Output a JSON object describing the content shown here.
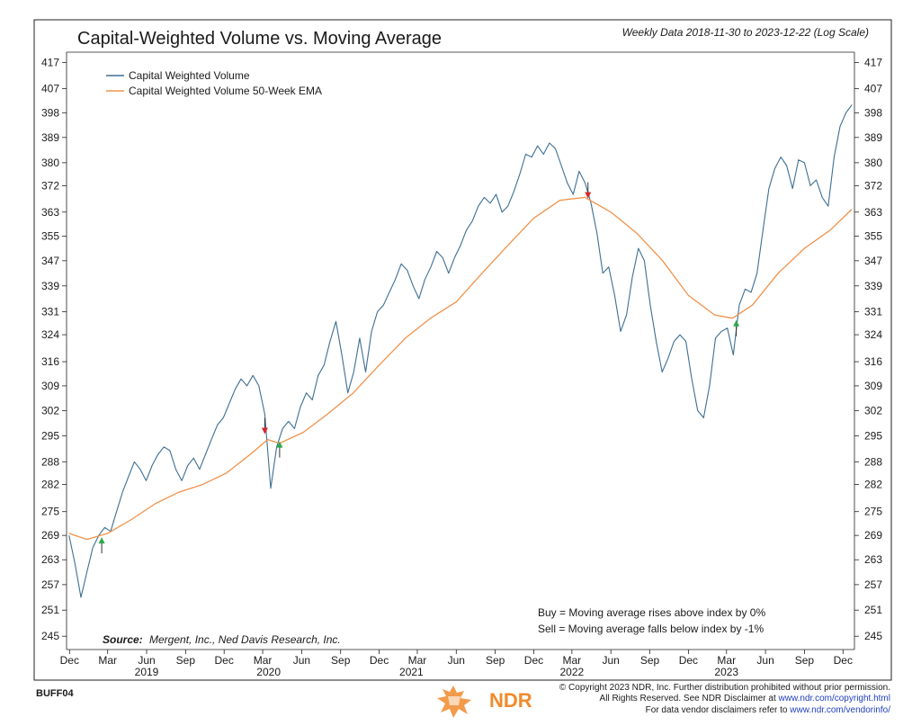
{
  "header": {
    "title": "Capital-Weighted Volume vs. Moving Average",
    "subtitle": "Weekly Data 2018-11-30 to 2023-12-22 (Log Scale)"
  },
  "legend": {
    "items": [
      {
        "label": "Capital Weighted Volume",
        "color": "#3d6f93"
      },
      {
        "label": "Capital Weighted Volume 50-Week EMA",
        "color": "#f0924a"
      }
    ]
  },
  "rules": {
    "buy": "Buy = Moving average rises above index by 0%",
    "sell": "Sell = Moving average falls below index by -1%"
  },
  "source": {
    "label": "Source:",
    "text": "Mergent, Inc., Ned Davis Research, Inc."
  },
  "footer": {
    "code": "BUFF04",
    "logo": "NDR",
    "copyright": "© Copyright 2023 NDR, Inc. Further distribution prohibited without prior permission.",
    "rights_prefix": "All Rights Reserved. See NDR Disclaimer at ",
    "rights_link": "www.ndr.com/copyright.html",
    "vendor_prefix": "For data vendor disclaimers refer to ",
    "vendor_link": "www.ndr.com/vendorinfo/"
  },
  "chart_data": {
    "type": "line",
    "title": "Capital-Weighted Volume vs. Moving Average",
    "subtitle": "Weekly Data 2018-11-30 to 2023-12-22 (Log Scale)",
    "x_range": [
      "2018-11-30",
      "2023-12-22"
    ],
    "y_scale": "log",
    "ylim": [
      242,
      421
    ],
    "y_ticks": [
      245,
      251,
      257,
      263,
      269,
      275,
      282,
      288,
      295,
      302,
      309,
      316,
      324,
      331,
      339,
      347,
      355,
      363,
      372,
      380,
      389,
      398,
      407,
      417
    ],
    "x_tick_labels": [
      "Dec",
      "Mar",
      "Jun",
      "Sep",
      "Dec",
      "Mar",
      "Jun",
      "Sep",
      "Dec",
      "Mar",
      "Jun",
      "Sep",
      "Dec",
      "Mar",
      "Jun",
      "Sep",
      "Dec",
      "Mar",
      "Jun",
      "Sep",
      "Dec"
    ],
    "x_tick_dates": [
      "2018-12-01",
      "2019-03-01",
      "2019-06-01",
      "2019-09-01",
      "2019-12-01",
      "2020-03-01",
      "2020-06-01",
      "2020-09-01",
      "2020-12-01",
      "2021-03-01",
      "2021-06-01",
      "2021-09-01",
      "2021-12-01",
      "2022-03-01",
      "2022-06-01",
      "2022-09-01",
      "2022-12-01",
      "2023-03-01",
      "2023-06-01",
      "2023-09-01",
      "2023-12-01"
    ],
    "year_labels": [
      {
        "label": "2019",
        "date": "2019-06-01"
      },
      {
        "label": "2020",
        "date": "2020-03-15"
      },
      {
        "label": "2021",
        "date": "2021-02-15"
      },
      {
        "label": "2022",
        "date": "2022-03-01"
      },
      {
        "label": "2023",
        "date": "2023-03-01"
      }
    ],
    "grid": false,
    "legend_position": "top-left",
    "series": [
      {
        "name": "Capital Weighted Volume",
        "color": "#3d6f93",
        "points": [
          [
            "2018-11-30",
            269
          ],
          [
            "2018-12-14",
            262
          ],
          [
            "2018-12-28",
            254
          ],
          [
            "2019-01-11",
            260
          ],
          [
            "2019-01-25",
            266
          ],
          [
            "2019-02-08",
            269
          ],
          [
            "2019-02-22",
            271
          ],
          [
            "2019-03-08",
            270
          ],
          [
            "2019-03-22",
            275
          ],
          [
            "2019-04-05",
            280
          ],
          [
            "2019-04-19",
            284
          ],
          [
            "2019-05-03",
            288
          ],
          [
            "2019-05-17",
            286
          ],
          [
            "2019-05-31",
            283
          ],
          [
            "2019-06-14",
            287
          ],
          [
            "2019-06-28",
            290
          ],
          [
            "2019-07-12",
            292
          ],
          [
            "2019-07-26",
            291
          ],
          [
            "2019-08-09",
            286
          ],
          [
            "2019-08-23",
            283
          ],
          [
            "2019-09-06",
            287
          ],
          [
            "2019-09-20",
            289
          ],
          [
            "2019-10-04",
            286
          ],
          [
            "2019-10-18",
            290
          ],
          [
            "2019-11-01",
            294
          ],
          [
            "2019-11-15",
            298
          ],
          [
            "2019-11-29",
            300
          ],
          [
            "2019-12-13",
            304
          ],
          [
            "2019-12-27",
            308
          ],
          [
            "2020-01-10",
            311
          ],
          [
            "2020-01-24",
            309
          ],
          [
            "2020-02-07",
            312
          ],
          [
            "2020-02-21",
            309
          ],
          [
            "2020-03-06",
            301
          ],
          [
            "2020-03-20",
            281
          ],
          [
            "2020-04-03",
            292
          ],
          [
            "2020-04-17",
            297
          ],
          [
            "2020-05-01",
            299
          ],
          [
            "2020-05-15",
            297
          ],
          [
            "2020-05-29",
            303
          ],
          [
            "2020-06-12",
            307
          ],
          [
            "2020-06-26",
            305
          ],
          [
            "2020-07-10",
            312
          ],
          [
            "2020-07-24",
            315
          ],
          [
            "2020-08-07",
            322
          ],
          [
            "2020-08-21",
            328
          ],
          [
            "2020-09-04",
            318
          ],
          [
            "2020-09-18",
            307
          ],
          [
            "2020-10-02",
            313
          ],
          [
            "2020-10-16",
            323
          ],
          [
            "2020-10-30",
            313
          ],
          [
            "2020-11-13",
            325
          ],
          [
            "2020-11-27",
            331
          ],
          [
            "2020-12-11",
            333
          ],
          [
            "2020-12-25",
            337
          ],
          [
            "2021-01-08",
            341
          ],
          [
            "2021-01-22",
            346
          ],
          [
            "2021-02-05",
            344
          ],
          [
            "2021-02-19",
            339
          ],
          [
            "2021-03-05",
            335
          ],
          [
            "2021-03-19",
            341
          ],
          [
            "2021-04-02",
            345
          ],
          [
            "2021-04-16",
            350
          ],
          [
            "2021-04-30",
            348
          ],
          [
            "2021-05-14",
            343
          ],
          [
            "2021-05-28",
            348
          ],
          [
            "2021-06-11",
            352
          ],
          [
            "2021-06-25",
            357
          ],
          [
            "2021-07-09",
            360
          ],
          [
            "2021-07-23",
            365
          ],
          [
            "2021-08-06",
            368
          ],
          [
            "2021-08-20",
            366
          ],
          [
            "2021-09-03",
            369
          ],
          [
            "2021-09-17",
            363
          ],
          [
            "2021-10-01",
            365
          ],
          [
            "2021-10-15",
            370
          ],
          [
            "2021-10-29",
            376
          ],
          [
            "2021-11-12",
            383
          ],
          [
            "2021-11-26",
            382
          ],
          [
            "2021-12-10",
            386
          ],
          [
            "2021-12-24",
            383
          ],
          [
            "2022-01-07",
            387
          ],
          [
            "2022-01-21",
            385
          ],
          [
            "2022-02-04",
            379
          ],
          [
            "2022-02-18",
            373
          ],
          [
            "2022-03-04",
            369
          ],
          [
            "2022-03-18",
            377
          ],
          [
            "2022-04-01",
            373
          ],
          [
            "2022-04-15",
            366
          ],
          [
            "2022-04-29",
            356
          ],
          [
            "2022-05-13",
            343
          ],
          [
            "2022-05-27",
            345
          ],
          [
            "2022-06-10",
            336
          ],
          [
            "2022-06-24",
            325
          ],
          [
            "2022-07-08",
            330
          ],
          [
            "2022-07-22",
            342
          ],
          [
            "2022-08-05",
            351
          ],
          [
            "2022-08-19",
            347
          ],
          [
            "2022-09-02",
            333
          ],
          [
            "2022-09-16",
            322
          ],
          [
            "2022-09-30",
            313
          ],
          [
            "2022-10-14",
            317
          ],
          [
            "2022-10-28",
            322
          ],
          [
            "2022-11-11",
            324
          ],
          [
            "2022-11-25",
            322
          ],
          [
            "2022-12-09",
            311
          ],
          [
            "2022-12-23",
            302
          ],
          [
            "2023-01-06",
            300
          ],
          [
            "2023-01-20",
            309
          ],
          [
            "2023-02-03",
            323
          ],
          [
            "2023-02-17",
            325
          ],
          [
            "2023-03-03",
            326
          ],
          [
            "2023-03-17",
            318
          ],
          [
            "2023-03-31",
            333
          ],
          [
            "2023-04-14",
            338
          ],
          [
            "2023-04-28",
            337
          ],
          [
            "2023-05-12",
            343
          ],
          [
            "2023-05-26",
            357
          ],
          [
            "2023-06-09",
            371
          ],
          [
            "2023-06-23",
            378
          ],
          [
            "2023-07-07",
            382
          ],
          [
            "2023-07-21",
            379
          ],
          [
            "2023-08-04",
            371
          ],
          [
            "2023-08-18",
            381
          ],
          [
            "2023-09-01",
            380
          ],
          [
            "2023-09-15",
            372
          ],
          [
            "2023-09-29",
            374
          ],
          [
            "2023-10-13",
            368
          ],
          [
            "2023-10-27",
            365
          ],
          [
            "2023-11-10",
            382
          ],
          [
            "2023-11-24",
            393
          ],
          [
            "2023-12-08",
            398
          ],
          [
            "2023-12-22",
            401
          ]
        ]
      },
      {
        "name": "Capital Weighted Volume 50-Week EMA",
        "color": "#f0924a",
        "points": [
          [
            "2018-11-30",
            269.5
          ],
          [
            "2019-01-11",
            268
          ],
          [
            "2019-03-01",
            269.5
          ],
          [
            "2019-04-26",
            273
          ],
          [
            "2019-06-21",
            277
          ],
          [
            "2019-08-16",
            280
          ],
          [
            "2019-10-11",
            282
          ],
          [
            "2019-12-06",
            285
          ],
          [
            "2020-02-01",
            290
          ],
          [
            "2020-03-13",
            294
          ],
          [
            "2020-04-10",
            293
          ],
          [
            "2020-06-05",
            296
          ],
          [
            "2020-08-01",
            301
          ],
          [
            "2020-10-01",
            307
          ],
          [
            "2020-12-01",
            315
          ],
          [
            "2021-02-01",
            323
          ],
          [
            "2021-04-01",
            329
          ],
          [
            "2021-06-01",
            334
          ],
          [
            "2021-08-01",
            343
          ],
          [
            "2021-10-01",
            352
          ],
          [
            "2021-12-01",
            361
          ],
          [
            "2022-02-01",
            367
          ],
          [
            "2022-04-01",
            368
          ],
          [
            "2022-06-01",
            363
          ],
          [
            "2022-08-01",
            356
          ],
          [
            "2022-10-01",
            347
          ],
          [
            "2022-12-01",
            336
          ],
          [
            "2023-02-01",
            330
          ],
          [
            "2023-03-15",
            329
          ],
          [
            "2023-05-01",
            333
          ],
          [
            "2023-07-01",
            343
          ],
          [
            "2023-09-01",
            351
          ],
          [
            "2023-11-01",
            357
          ],
          [
            "2023-12-22",
            364
          ]
        ]
      }
    ],
    "signals": [
      {
        "type": "buy",
        "date": "2019-02-15",
        "value": 269
      },
      {
        "type": "sell",
        "date": "2020-03-06",
        "value": 295
      },
      {
        "type": "buy",
        "date": "2020-04-10",
        "value": 294
      },
      {
        "type": "sell",
        "date": "2022-04-08",
        "value": 367
      },
      {
        "type": "buy",
        "date": "2023-03-24",
        "value": 329
      }
    ],
    "signal_colors": {
      "buy": "#2fa84a",
      "sell": "#d8232a"
    }
  }
}
